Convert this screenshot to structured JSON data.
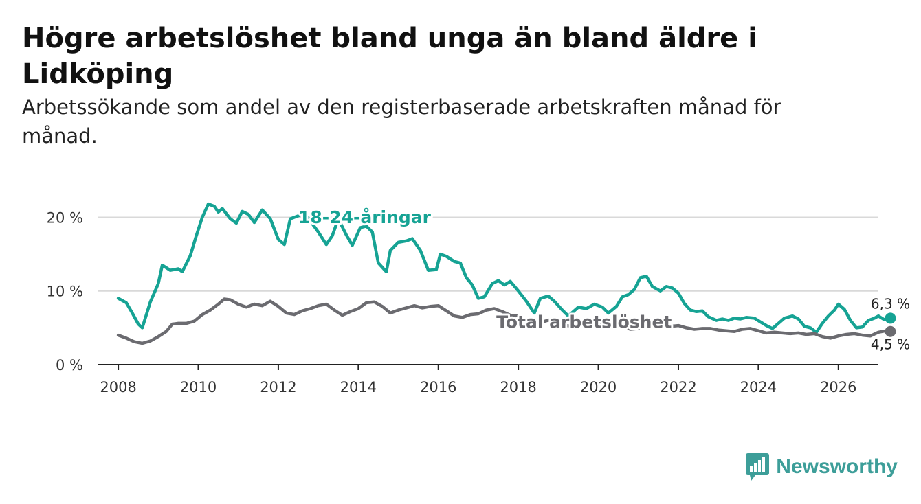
{
  "title": "Högre arbetslöshet bland unga än bland äldre i Lidköping",
  "subtitle": "Arbetssökande som andel av den registerbaserade arbetskraften månad för månad.",
  "brand": {
    "name": "Newsworthy",
    "icon": "newsworthy-logo-icon",
    "color": "#3d9e99"
  },
  "chart_data": {
    "type": "line",
    "title": "Högre arbetslöshet bland unga än bland äldre i Lidköping",
    "xlabel": "",
    "ylabel": "",
    "xlim": [
      2007.5,
      2027.0
    ],
    "ylim": [
      0,
      22
    ],
    "grid": true,
    "x_ticks": [
      2008,
      2010,
      2012,
      2014,
      2016,
      2018,
      2020,
      2022,
      2024,
      2026
    ],
    "y_ticks": [
      {
        "value": 0,
        "label": "0 %"
      },
      {
        "value": 10,
        "label": "10 %"
      },
      {
        "value": 20,
        "label": "20 %"
      }
    ],
    "series": [
      {
        "name": "18-24-åringar",
        "color": "#16a394",
        "end_label": "6,3 %",
        "points": [
          [
            2008.0,
            9.0
          ],
          [
            2008.2,
            8.4
          ],
          [
            2008.35,
            7.0
          ],
          [
            2008.5,
            5.5
          ],
          [
            2008.6,
            5.0
          ],
          [
            2008.8,
            8.5
          ],
          [
            2009.0,
            11.0
          ],
          [
            2009.1,
            13.5
          ],
          [
            2009.3,
            12.8
          ],
          [
            2009.5,
            13.0
          ],
          [
            2009.6,
            12.6
          ],
          [
            2009.8,
            14.8
          ],
          [
            2009.95,
            17.5
          ],
          [
            2010.1,
            20.0
          ],
          [
            2010.25,
            21.8
          ],
          [
            2010.4,
            21.5
          ],
          [
            2010.5,
            20.7
          ],
          [
            2010.6,
            21.2
          ],
          [
            2010.8,
            19.8
          ],
          [
            2010.95,
            19.2
          ],
          [
            2011.1,
            20.8
          ],
          [
            2011.25,
            20.4
          ],
          [
            2011.4,
            19.3
          ],
          [
            2011.6,
            21.0
          ],
          [
            2011.8,
            19.8
          ],
          [
            2012.0,
            17.0
          ],
          [
            2012.15,
            16.3
          ],
          [
            2012.3,
            19.8
          ],
          [
            2012.5,
            20.2
          ],
          [
            2012.65,
            20.6
          ],
          [
            2012.8,
            19.5
          ],
          [
            2013.0,
            18.0
          ],
          [
            2013.2,
            16.3
          ],
          [
            2013.35,
            17.5
          ],
          [
            2013.5,
            19.8
          ],
          [
            2013.7,
            17.6
          ],
          [
            2013.85,
            16.2
          ],
          [
            2014.05,
            18.6
          ],
          [
            2014.2,
            18.8
          ],
          [
            2014.35,
            18.0
          ],
          [
            2014.5,
            13.8
          ],
          [
            2014.7,
            12.6
          ],
          [
            2014.8,
            15.5
          ],
          [
            2015.0,
            16.6
          ],
          [
            2015.2,
            16.8
          ],
          [
            2015.35,
            17.1
          ],
          [
            2015.55,
            15.5
          ],
          [
            2015.75,
            12.8
          ],
          [
            2015.95,
            12.9
          ],
          [
            2016.05,
            15.0
          ],
          [
            2016.2,
            14.7
          ],
          [
            2016.4,
            14.0
          ],
          [
            2016.55,
            13.8
          ],
          [
            2016.7,
            11.8
          ],
          [
            2016.85,
            10.8
          ],
          [
            2017.0,
            9.0
          ],
          [
            2017.15,
            9.2
          ],
          [
            2017.35,
            11.0
          ],
          [
            2017.5,
            11.4
          ],
          [
            2017.65,
            10.8
          ],
          [
            2017.8,
            11.3
          ],
          [
            2018.0,
            10.0
          ],
          [
            2018.2,
            8.6
          ],
          [
            2018.4,
            7.0
          ],
          [
            2018.55,
            9.0
          ],
          [
            2018.75,
            9.3
          ],
          [
            2018.9,
            8.6
          ],
          [
            2019.1,
            7.4
          ],
          [
            2019.25,
            6.6
          ],
          [
            2019.5,
            7.8
          ],
          [
            2019.7,
            7.6
          ],
          [
            2019.9,
            8.2
          ],
          [
            2020.1,
            7.8
          ],
          [
            2020.25,
            7.0
          ],
          [
            2020.45,
            7.9
          ],
          [
            2020.6,
            9.2
          ],
          [
            2020.75,
            9.5
          ],
          [
            2020.9,
            10.2
          ],
          [
            2021.05,
            11.8
          ],
          [
            2021.2,
            12.0
          ],
          [
            2021.35,
            10.6
          ],
          [
            2021.55,
            10.0
          ],
          [
            2021.7,
            10.6
          ],
          [
            2021.85,
            10.4
          ],
          [
            2022.0,
            9.7
          ],
          [
            2022.15,
            8.3
          ],
          [
            2022.3,
            7.4
          ],
          [
            2022.45,
            7.2
          ],
          [
            2022.6,
            7.3
          ],
          [
            2022.75,
            6.5
          ],
          [
            2022.95,
            6.0
          ],
          [
            2023.1,
            6.2
          ],
          [
            2023.25,
            6.0
          ],
          [
            2023.4,
            6.3
          ],
          [
            2023.55,
            6.2
          ],
          [
            2023.7,
            6.4
          ],
          [
            2023.9,
            6.3
          ],
          [
            2024.05,
            5.8
          ],
          [
            2024.2,
            5.3
          ],
          [
            2024.35,
            4.9
          ],
          [
            2024.5,
            5.6
          ],
          [
            2024.65,
            6.3
          ],
          [
            2024.85,
            6.6
          ],
          [
            2025.0,
            6.2
          ],
          [
            2025.15,
            5.2
          ],
          [
            2025.3,
            5.0
          ],
          [
            2025.45,
            4.4
          ],
          [
            2025.6,
            5.6
          ],
          [
            2025.75,
            6.6
          ],
          [
            2025.9,
            7.4
          ],
          [
            2026.0,
            8.2
          ],
          [
            2026.15,
            7.5
          ],
          [
            2026.3,
            6.0
          ],
          [
            2026.45,
            5.0
          ],
          [
            2026.6,
            5.1
          ],
          [
            2026.75,
            6.0
          ],
          [
            2026.9,
            6.3
          ],
          [
            2027.0,
            6.6
          ],
          [
            2027.15,
            6.1
          ],
          [
            2027.3,
            6.3
          ]
        ]
      },
      {
        "name": "Total arbetslöshet",
        "color": "#6b6b70",
        "end_label": "4,5 %",
        "points": [
          [
            2008.0,
            4.0
          ],
          [
            2008.2,
            3.6
          ],
          [
            2008.4,
            3.1
          ],
          [
            2008.6,
            2.9
          ],
          [
            2008.8,
            3.2
          ],
          [
            2009.0,
            3.8
          ],
          [
            2009.2,
            4.5
          ],
          [
            2009.35,
            5.5
          ],
          [
            2009.5,
            5.6
          ],
          [
            2009.7,
            5.6
          ],
          [
            2009.9,
            5.9
          ],
          [
            2010.1,
            6.8
          ],
          [
            2010.3,
            7.4
          ],
          [
            2010.5,
            8.2
          ],
          [
            2010.65,
            8.9
          ],
          [
            2010.8,
            8.8
          ],
          [
            2011.0,
            8.2
          ],
          [
            2011.2,
            7.8
          ],
          [
            2011.4,
            8.2
          ],
          [
            2011.6,
            8.0
          ],
          [
            2011.8,
            8.6
          ],
          [
            2012.0,
            7.9
          ],
          [
            2012.2,
            7.0
          ],
          [
            2012.4,
            6.8
          ],
          [
            2012.6,
            7.3
          ],
          [
            2012.8,
            7.6
          ],
          [
            2013.0,
            8.0
          ],
          [
            2013.2,
            8.2
          ],
          [
            2013.4,
            7.4
          ],
          [
            2013.6,
            6.7
          ],
          [
            2013.8,
            7.2
          ],
          [
            2014.0,
            7.6
          ],
          [
            2014.2,
            8.4
          ],
          [
            2014.4,
            8.5
          ],
          [
            2014.6,
            7.9
          ],
          [
            2014.8,
            7.0
          ],
          [
            2015.0,
            7.4
          ],
          [
            2015.2,
            7.7
          ],
          [
            2015.4,
            8.0
          ],
          [
            2015.6,
            7.7
          ],
          [
            2015.8,
            7.9
          ],
          [
            2016.0,
            8.0
          ],
          [
            2016.2,
            7.3
          ],
          [
            2016.4,
            6.6
          ],
          [
            2016.6,
            6.4
          ],
          [
            2016.8,
            6.8
          ],
          [
            2017.0,
            6.9
          ],
          [
            2017.2,
            7.4
          ],
          [
            2017.4,
            7.6
          ],
          [
            2017.6,
            7.2
          ],
          [
            2017.8,
            6.7
          ],
          [
            2018.0,
            6.6
          ],
          [
            2018.2,
            6.2
          ],
          [
            2018.4,
            6.0
          ],
          [
            2018.6,
            5.8
          ],
          [
            2018.8,
            6.1
          ],
          [
            2019.0,
            5.7
          ],
          [
            2019.2,
            5.3
          ],
          [
            2019.4,
            5.2
          ],
          [
            2019.6,
            5.5
          ],
          [
            2019.8,
            5.6
          ],
          [
            2020.0,
            5.5
          ],
          [
            2020.2,
            5.7
          ],
          [
            2020.4,
            5.6
          ],
          [
            2020.6,
            5.2
          ],
          [
            2020.8,
            4.8
          ],
          [
            2021.0,
            4.9
          ],
          [
            2021.2,
            5.4
          ],
          [
            2021.4,
            5.7
          ],
          [
            2021.6,
            5.5
          ],
          [
            2021.8,
            5.2
          ],
          [
            2022.0,
            5.3
          ],
          [
            2022.2,
            5.0
          ],
          [
            2022.4,
            4.8
          ],
          [
            2022.6,
            4.9
          ],
          [
            2022.8,
            4.9
          ],
          [
            2023.0,
            4.7
          ],
          [
            2023.2,
            4.6
          ],
          [
            2023.4,
            4.5
          ],
          [
            2023.6,
            4.8
          ],
          [
            2023.8,
            4.9
          ],
          [
            2024.0,
            4.6
          ],
          [
            2024.2,
            4.3
          ],
          [
            2024.4,
            4.4
          ],
          [
            2024.6,
            4.3
          ],
          [
            2024.8,
            4.2
          ],
          [
            2025.0,
            4.3
          ],
          [
            2025.2,
            4.1
          ],
          [
            2025.4,
            4.2
          ],
          [
            2025.6,
            3.8
          ],
          [
            2025.8,
            3.6
          ],
          [
            2026.0,
            3.9
          ],
          [
            2026.2,
            4.1
          ],
          [
            2026.4,
            4.2
          ],
          [
            2026.6,
            4.0
          ],
          [
            2026.8,
            3.9
          ],
          [
            2027.0,
            4.4
          ],
          [
            2027.2,
            4.6
          ],
          [
            2027.3,
            4.5
          ]
        ]
      }
    ]
  }
}
